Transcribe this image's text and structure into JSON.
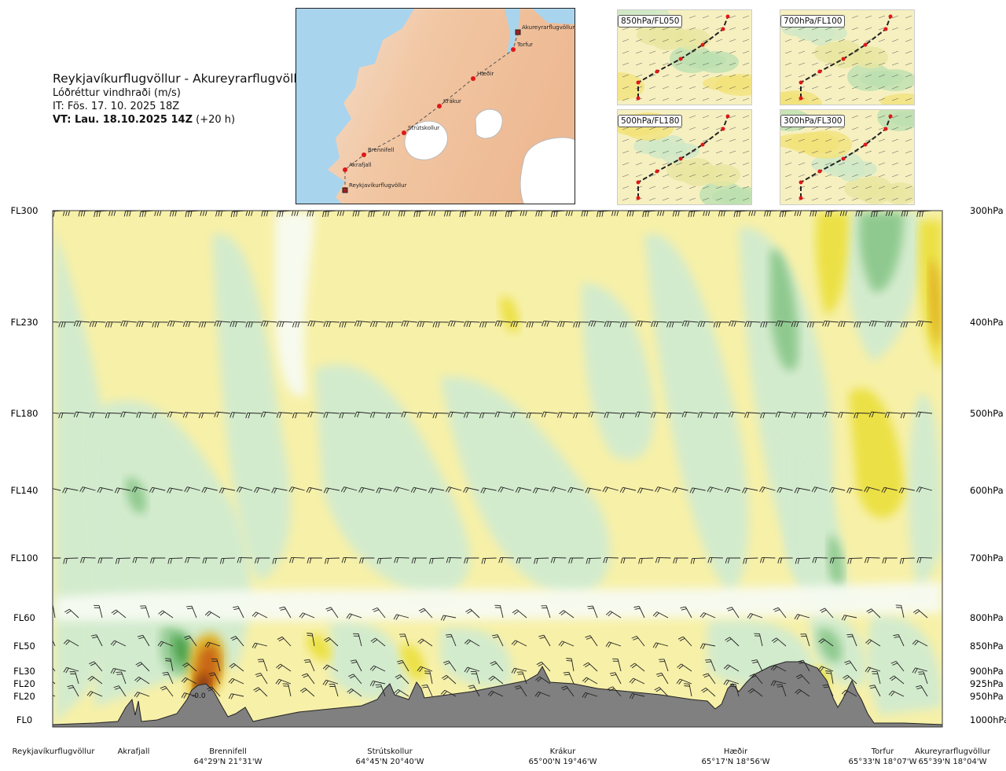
{
  "header": {
    "title": "Reykjavíkurflugvöllur - Akureyrarflugvöllur",
    "subtitle": "Lóðréttur vindhraði (m/s)",
    "init_time": "IT: Fös. 17. 10. 2025 18Z",
    "valid_prefix": "VT: Lau. 18.10.2025 14Z",
    "valid_suffix": " (+20 h)"
  },
  "map": {
    "stations": [
      {
        "name": "Akureyrarflugvöllur",
        "kind": "airport"
      },
      {
        "name": "Torfur",
        "kind": "point"
      },
      {
        "name": "Hæðir",
        "kind": "point"
      },
      {
        "name": "Krákur",
        "kind": "point"
      },
      {
        "name": "Strútskollur",
        "kind": "point"
      },
      {
        "name": "Brennifell",
        "kind": "point"
      },
      {
        "name": "Akrafjall",
        "kind": "point"
      },
      {
        "name": "Reykjavíkurflugvöllur",
        "kind": "airport"
      }
    ]
  },
  "mini_maps": [
    {
      "label": "850hPa/FL050"
    },
    {
      "label": "700hPa/FL100"
    },
    {
      "label": "500hPa/FL180"
    },
    {
      "label": "300hPa/FL300"
    }
  ],
  "chart_data": {
    "type": "heatmap",
    "title": "Lóðréttur vindhraði (m/s)",
    "left_axis_labels": [
      "FL300",
      "FL230",
      "FL180",
      "FL140",
      "FL100",
      "FL60",
      "FL50",
      "FL30",
      "FL20",
      "FL20",
      "FL0"
    ],
    "right_axis_labels": [
      "300hPa",
      "400hPa",
      "500hPa",
      "600hPa",
      "700hPa",
      "800hPa",
      "850hPa",
      "900hPa",
      "925hPa",
      "950hPa",
      "1000hPa"
    ],
    "pressure_levels_hpa": [
      300,
      400,
      500,
      600,
      700,
      800,
      850,
      900,
      925,
      950,
      1000
    ],
    "ylim_hpa": [
      1000,
      300
    ],
    "waypoints": [
      {
        "name": "Reykjavíkurflugvöllur",
        "coord": ""
      },
      {
        "name": "Akrafjall",
        "coord": ""
      },
      {
        "name": "Brennifell",
        "coord": "64°29'N 21°31'W"
      },
      {
        "name": "Strútskollur",
        "coord": "64°45'N 20°40'W"
      },
      {
        "name": "Krákur",
        "coord": "65°00'N 19°46'W"
      },
      {
        "name": "Hæðir",
        "coord": "65°17'N 18°56'W"
      },
      {
        "name": "Torfur",
        "coord": "65°33'N 18°07'W"
      },
      {
        "name": "Akureyrarflugvöllur",
        "coord": "65°39'N 18°04'W"
      }
    ],
    "annotation": "-0.0",
    "colors": {
      "strong_down": "#4aa04a",
      "down": "#8cc88c",
      "weak_down": "#d2ebcf",
      "near_zero": "#f7fbf2",
      "weak_up": "#f7f0a8",
      "up": "#ebe040",
      "strong_up": "#e0b020",
      "very_strong_up": "#c86418",
      "extreme_up": "#8c3c10",
      "terrain": "#808080"
    }
  }
}
